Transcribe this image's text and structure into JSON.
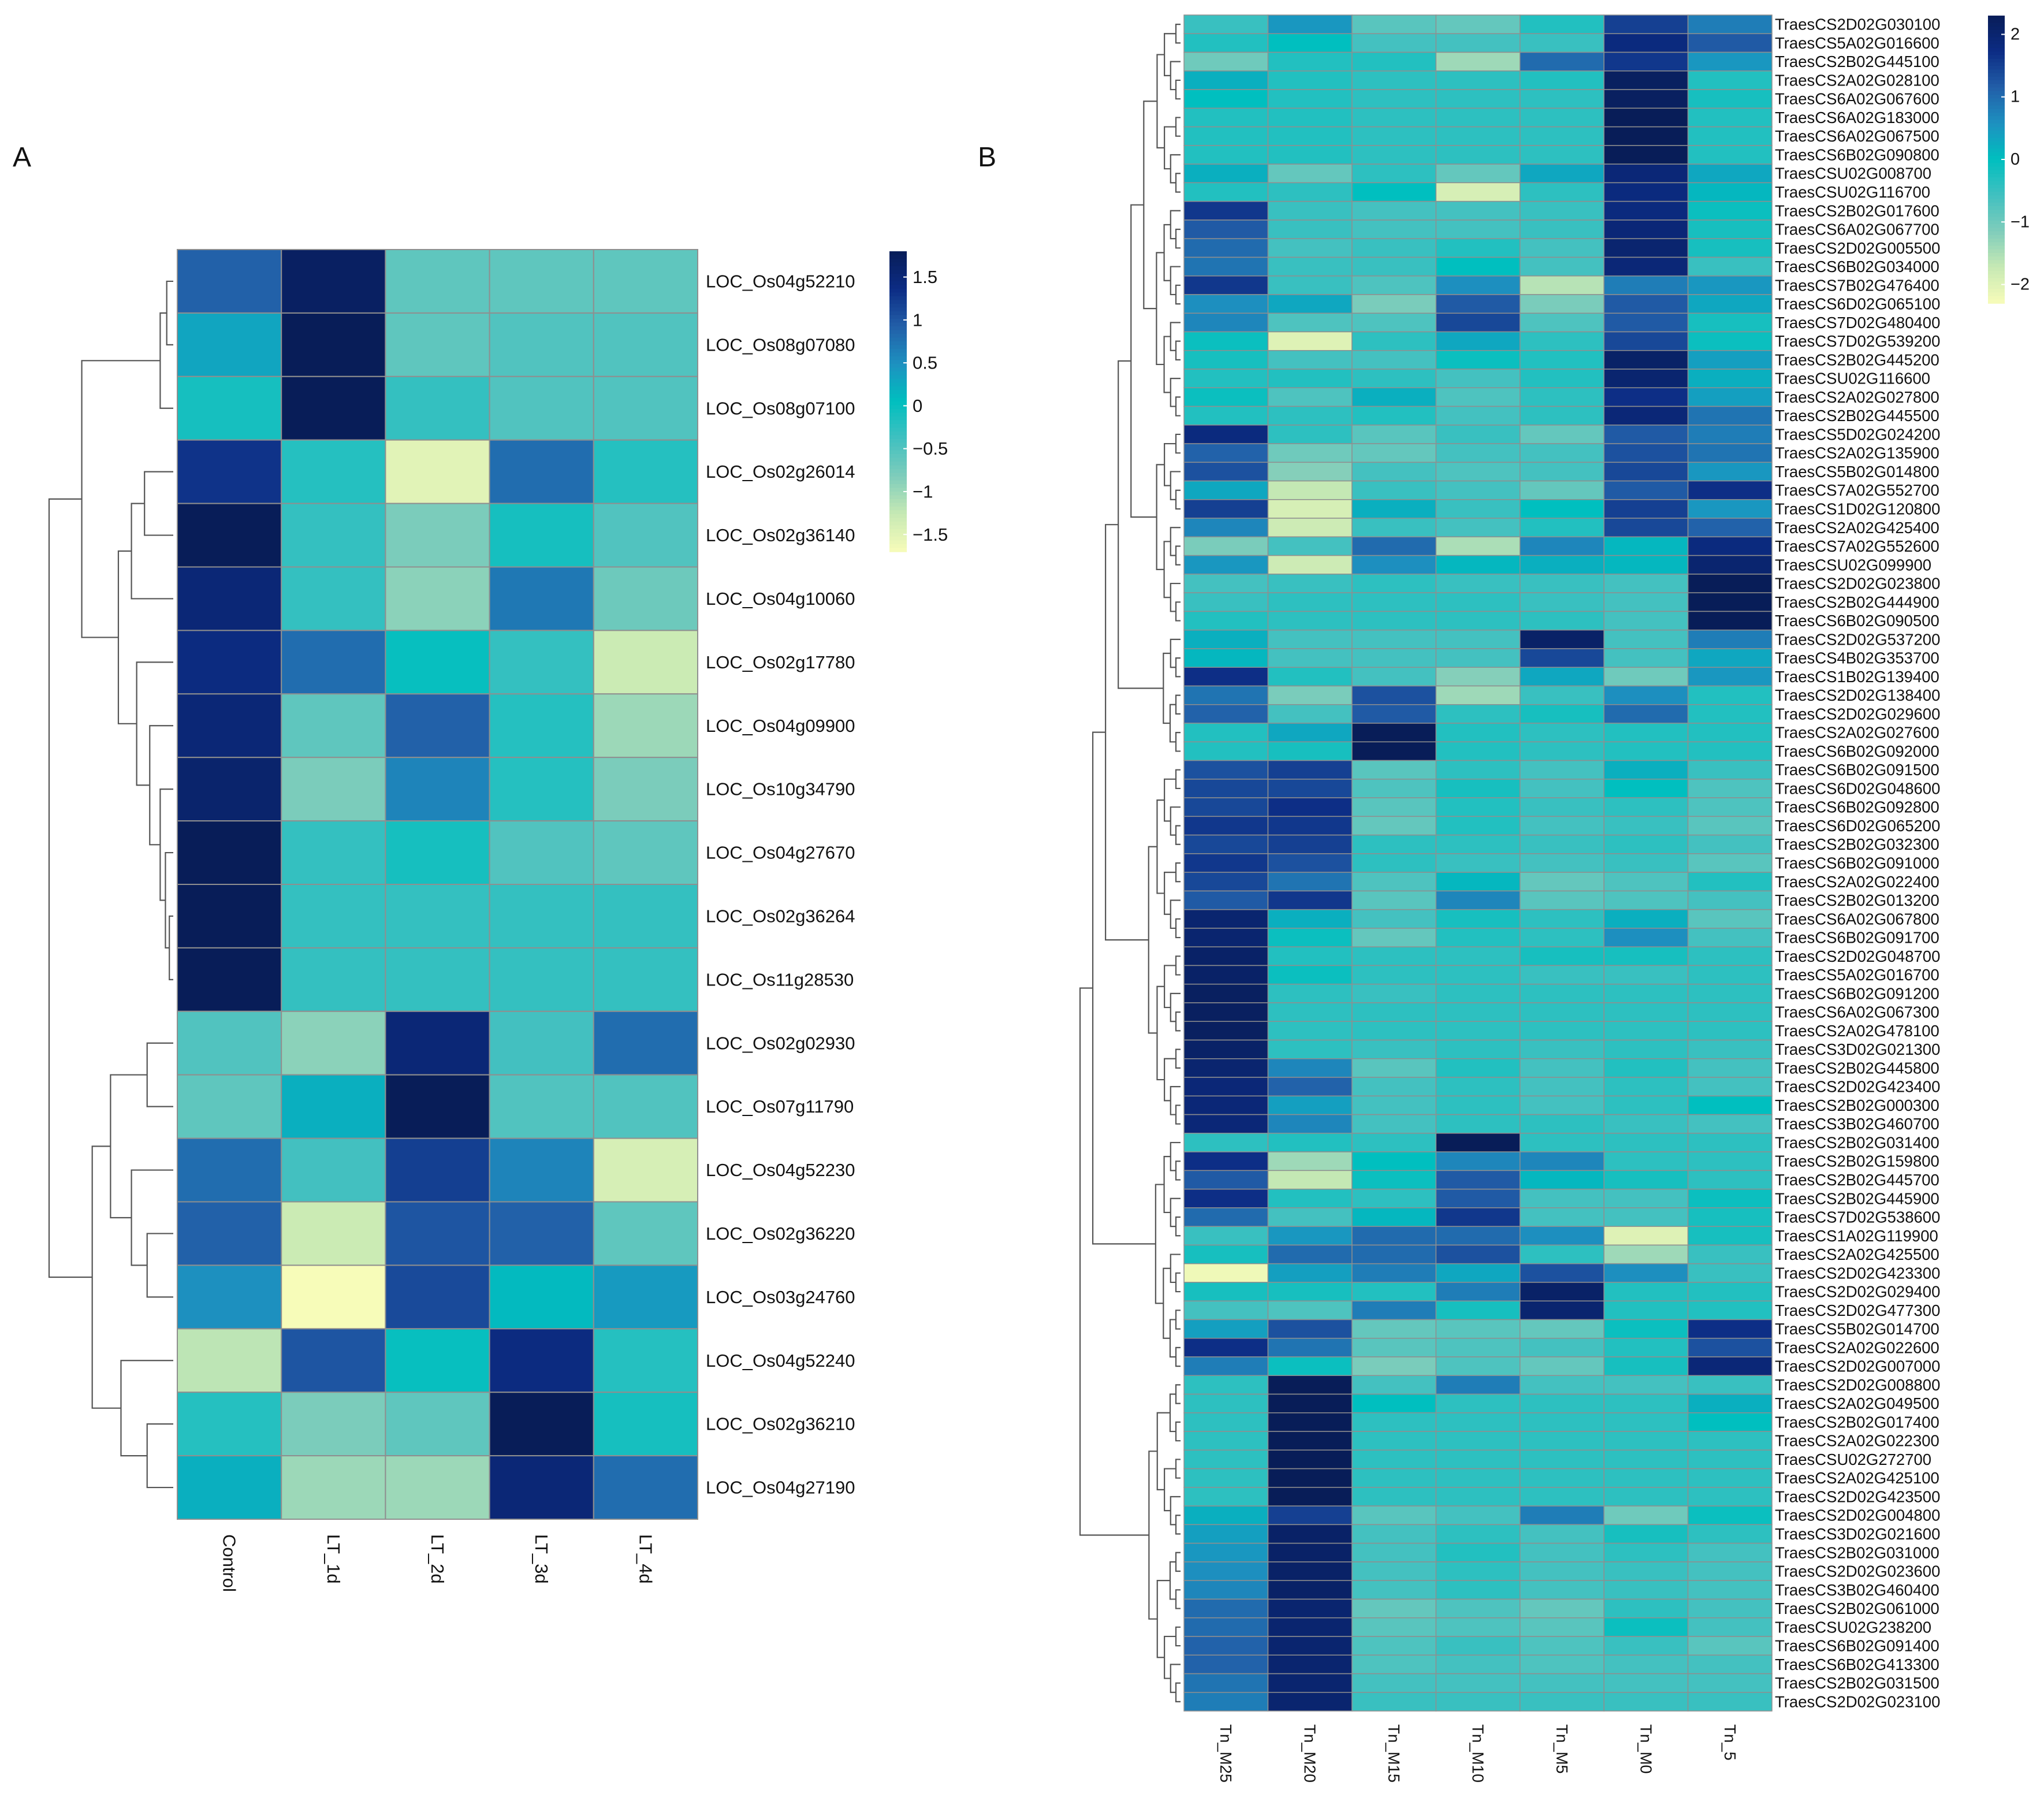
{
  "chart_data": [
    {
      "panel": "A",
      "type": "heatmap",
      "title": "",
      "columns": [
        "Control",
        "LT_1d",
        "LT_2d",
        "LT_3d",
        "LT_4d"
      ],
      "rows": [
        "LOC_Os04g52210",
        "LOC_Os08g07080",
        "LOC_Os08g07100",
        "LOC_Os02g26014",
        "LOC_Os02g36140",
        "LOC_Os04g10060",
        "LOC_Os02g17780",
        "LOC_Os04g09900",
        "LOC_Os10g34790",
        "LOC_Os04g27670",
        "LOC_Os02g36264",
        "LOC_Os11g28530",
        "LOC_Os02g02930",
        "LOC_Os07g11790",
        "LOC_Os04g52230",
        "LOC_Os02g36220",
        "LOC_Os03g24760",
        "LOC_Os04g52240",
        "LOC_Os02g36210",
        "LOC_Os04g27190"
      ],
      "values": [
        [
          0.9,
          1.7,
          -0.6,
          -0.6,
          -0.6
        ],
        [
          0.3,
          1.8,
          -0.6,
          -0.5,
          -0.5
        ],
        [
          -0.1,
          1.8,
          -0.3,
          -0.5,
          -0.5
        ],
        [
          1.3,
          -0.2,
          -1.5,
          0.8,
          -0.2
        ],
        [
          1.8,
          -0.3,
          -0.8,
          -0.1,
          -0.5
        ],
        [
          1.5,
          -0.3,
          -0.9,
          0.7,
          -0.7
        ],
        [
          1.4,
          0.8,
          0.0,
          -0.3,
          -1.3
        ],
        [
          1.5,
          -0.6,
          0.9,
          -0.2,
          -1.0
        ],
        [
          1.6,
          -0.8,
          0.6,
          -0.2,
          -0.8
        ],
        [
          1.8,
          -0.3,
          -0.1,
          -0.5,
          -0.6
        ],
        [
          1.8,
          -0.3,
          -0.3,
          -0.3,
          -0.3
        ],
        [
          1.8,
          -0.3,
          -0.3,
          -0.3,
          -0.3
        ],
        [
          -0.5,
          -0.9,
          1.5,
          -0.4,
          0.8
        ],
        [
          -0.6,
          0.2,
          1.8,
          -0.5,
          -0.5
        ],
        [
          0.8,
          -0.4,
          1.2,
          0.6,
          -1.4
        ],
        [
          0.9,
          -1.3,
          1.0,
          0.9,
          -0.6
        ],
        [
          0.5,
          -1.8,
          1.1,
          0.1,
          0.4
        ],
        [
          -1.2,
          1.0,
          0.0,
          1.4,
          -0.2
        ],
        [
          -0.2,
          -0.8,
          -0.6,
          1.8,
          -0.1
        ],
        [
          0.2,
          -1.0,
          -1.0,
          1.5,
          0.8
        ]
      ],
      "colorbar": {
        "min": -1.7,
        "max": 1.8,
        "ticks": [
          1.5,
          1,
          0.5,
          0,
          -0.5,
          -1,
          -1.5
        ],
        "tick_labels": [
          "1.5",
          "1",
          "0.5",
          "0",
          "−0.5",
          "−1",
          "−1.5"
        ]
      },
      "row_dendrogram": [
        [
          0,
          1,
          0.05
        ],
        [
          20,
          2,
          0.1
        ],
        [
          3,
          4,
          0.22
        ],
        [
          22,
          5,
          0.32
        ],
        [
          10,
          11,
          0.03
        ],
        [
          9,
          24,
          0.06
        ],
        [
          8,
          25,
          0.1
        ],
        [
          7,
          26,
          0.18
        ],
        [
          6,
          27,
          0.28
        ],
        [
          23,
          28,
          0.42
        ],
        [
          21,
          29,
          0.7
        ],
        [
          12,
          13,
          0.2
        ],
        [
          15,
          16,
          0.2
        ],
        [
          14,
          32,
          0.32
        ],
        [
          31,
          33,
          0.48
        ],
        [
          18,
          19,
          0.2
        ],
        [
          17,
          35,
          0.4
        ],
        [
          34,
          36,
          0.62
        ],
        [
          30,
          37,
          0.95
        ]
      ]
    },
    {
      "panel": "B",
      "type": "heatmap",
      "title": "",
      "columns": [
        "Tn_M25",
        "Tn_M20",
        "Tn_M15",
        "Tn_M10",
        "Tn_M5",
        "Tn_M0",
        "Tn_5"
      ],
      "rows": [
        "TraesCS2D02G030100",
        "TraesCS5A02G016600",
        "TraesCS2B02G445100",
        "TraesCS2A02G028100",
        "TraesCS6A02G067600",
        "TraesCS6A02G183000",
        "TraesCS6A02G067500",
        "TraesCS6B02G090800",
        "TraesCSU02G008700",
        "TraesCSU02G116700",
        "TraesCS2B02G017600",
        "TraesCS6A02G067700",
        "TraesCS2D02G005500",
        "TraesCS6B02G034000",
        "TraesCS7B02G476400",
        "TraesCS6D02G065100",
        "TraesCS7D02G480400",
        "TraesCS7D02G539200",
        "TraesCS2B02G445200",
        "TraesCSU02G116600",
        "TraesCS2A02G027800",
        "TraesCS2B02G445500",
        "TraesCS5D02G024200",
        "TraesCS2A02G135900",
        "TraesCS5B02G014800",
        "TraesCS7A02G552700",
        "TraesCS1D02G120800",
        "TraesCS2A02G425400",
        "TraesCS7A02G552600",
        "TraesCSU02G099900",
        "TraesCS2D02G023800",
        "TraesCS2B02G444900",
        "TraesCS6B02G090500",
        "TraesCS2D02G537200",
        "TraesCS4B02G353700",
        "TraesCS1B02G139400",
        "TraesCS2D02G138400",
        "TraesCS2D02G029600",
        "TraesCS2A02G027600",
        "TraesCS6B02G092000",
        "TraesCS6B02G091500",
        "TraesCS6D02G048600",
        "TraesCS6B02G092800",
        "TraesCS6D02G065200",
        "TraesCS2B02G032300",
        "TraesCS6B02G091000",
        "TraesCS2A02G022400",
        "TraesCS2B02G013200",
        "TraesCS6A02G067800",
        "TraesCS6B02G091700",
        "TraesCS2D02G048700",
        "TraesCS5A02G016700",
        "TraesCS6B02G091200",
        "TraesCS6A02G067300",
        "TraesCS2A02G478100",
        "TraesCS3D02G021300",
        "TraesCS2B02G445800",
        "TraesCS2D02G423400",
        "TraesCS2B02G000300",
        "TraesCS3B02G460700",
        "TraesCS2B02G031400",
        "TraesCS2B02G159800",
        "TraesCS2B02G445700",
        "TraesCS2B02G445900",
        "TraesCS7D02G538600",
        "TraesCS1A02G119900",
        "TraesCS2A02G425500",
        "TraesCS2D02G423300",
        "TraesCS2D02G029400",
        "TraesCS2D02G477300",
        "TraesCS5B02G014700",
        "TraesCS2A02G022600",
        "TraesCS2D02G007000",
        "TraesCS2D02G008800",
        "TraesCS2A02G049500",
        "TraesCS2B02G017400",
        "TraesCS2A02G022300",
        "TraesCSU02G272700",
        "TraesCS2A02G425100",
        "TraesCS2D02G423500",
        "TraesCS2D02G004800",
        "TraesCS3D02G021600",
        "TraesCS2B02G031000",
        "TraesCS2D02G023600",
        "TraesCS3B02G460400",
        "TraesCS2B02G061000",
        "TraesCSU02G238200",
        "TraesCS6B02G091400",
        "TraesCS6B02G413300",
        "TraesCS2B02G031500",
        "TraesCS2D02G023100"
      ],
      "values": [
        [
          -0.5,
          0.5,
          -0.8,
          -0.9,
          -0.3,
          1.5,
          0.8
        ],
        [
          -0.3,
          0.0,
          -0.6,
          -0.6,
          -0.5,
          1.8,
          1.2
        ],
        [
          -1.0,
          -0.3,
          -0.3,
          -1.4,
          1.0,
          1.6,
          0.5
        ],
        [
          0.2,
          -0.3,
          -0.4,
          -0.4,
          -0.3,
          2.2,
          -0.3
        ],
        [
          0.0,
          -0.3,
          -0.4,
          -0.4,
          -0.4,
          2.2,
          -0.2
        ],
        [
          -0.3,
          -0.3,
          -0.4,
          -0.4,
          -0.4,
          2.3,
          -0.3
        ],
        [
          -0.3,
          -0.3,
          -0.4,
          -0.4,
          -0.4,
          2.3,
          -0.3
        ],
        [
          -0.3,
          -0.3,
          -0.4,
          -0.4,
          -0.4,
          2.3,
          -0.3
        ],
        [
          0.2,
          -0.9,
          -0.4,
          -0.9,
          0.3,
          1.9,
          0.3
        ],
        [
          -0.3,
          -0.4,
          0.0,
          -1.9,
          -0.4,
          1.8,
          0.1
        ],
        [
          1.6,
          -0.5,
          -0.6,
          -0.6,
          -0.5,
          1.8,
          -0.1
        ],
        [
          1.2,
          -0.5,
          -0.6,
          -0.6,
          -0.5,
          1.9,
          -0.2
        ],
        [
          1.0,
          -0.6,
          -0.5,
          -0.3,
          -0.6,
          2.0,
          -0.2
        ],
        [
          0.9,
          -0.5,
          -0.5,
          0.0,
          -0.6,
          1.9,
          -0.5
        ],
        [
          1.6,
          -0.5,
          -0.7,
          0.6,
          -1.6,
          0.8,
          0.5
        ],
        [
          0.6,
          0.3,
          -1.1,
          1.2,
          -1.1,
          1.2,
          0.3
        ],
        [
          0.7,
          -0.7,
          -0.7,
          1.4,
          -0.7,
          1.2,
          -0.2
        ],
        [
          -0.1,
          -2.0,
          -0.4,
          0.3,
          -0.4,
          1.4,
          -0.1
        ],
        [
          -0.2,
          -0.6,
          -0.6,
          -0.1,
          -0.3,
          2.1,
          0.4
        ],
        [
          -0.3,
          -0.3,
          -0.4,
          -0.6,
          -0.3,
          2.0,
          0.2
        ],
        [
          -0.1,
          -0.7,
          0.2,
          -0.7,
          -0.4,
          1.7,
          0.4
        ],
        [
          -0.3,
          -0.4,
          -0.3,
          -0.6,
          -0.4,
          1.9,
          0.9
        ],
        [
          1.8,
          -0.4,
          -0.8,
          -0.5,
          -0.9,
          1.2,
          0.8
        ],
        [
          1.1,
          -1.0,
          -0.9,
          -0.6,
          -0.6,
          1.3,
          0.9
        ],
        [
          1.3,
          -1.2,
          -0.6,
          -0.7,
          -0.6,
          1.4,
          0.5
        ],
        [
          0.3,
          -1.7,
          -0.5,
          -0.6,
          -0.9,
          1.2,
          1.7
        ],
        [
          1.5,
          -1.9,
          0.2,
          -0.5,
          0.0,
          1.5,
          0.5
        ],
        [
          0.7,
          -1.8,
          -0.5,
          -0.6,
          -0.3,
          1.4,
          1.1
        ],
        [
          -1.1,
          -0.6,
          1.0,
          -1.5,
          0.7,
          0.1,
          1.8
        ],
        [
          0.5,
          -1.8,
          0.6,
          0.1,
          0.2,
          0.1,
          2.0
        ],
        [
          -0.6,
          -0.5,
          -0.4,
          -0.5,
          -0.5,
          -0.6,
          2.3
        ],
        [
          -0.5,
          -0.4,
          -0.4,
          -0.4,
          -0.5,
          -0.6,
          2.3
        ],
        [
          -0.3,
          -0.4,
          -0.4,
          -0.4,
          -0.4,
          -0.6,
          2.3
        ],
        [
          0.2,
          -0.6,
          -0.6,
          -0.6,
          2.1,
          -0.6,
          0.8
        ],
        [
          0.1,
          -0.6,
          -0.6,
          -0.6,
          1.4,
          -0.6,
          0.3
        ],
        [
          1.7,
          -0.3,
          -0.6,
          -1.2,
          0.3,
          -1.0,
          0.5
        ],
        [
          0.9,
          -1.1,
          1.3,
          -1.4,
          -0.5,
          0.6,
          -0.3
        ],
        [
          1.1,
          -0.6,
          1.2,
          -0.4,
          -0.2,
          1.0,
          -0.3
        ],
        [
          -0.3,
          0.3,
          2.3,
          -0.3,
          -0.4,
          -0.3,
          -0.3
        ],
        [
          -0.3,
          -0.2,
          2.3,
          -0.3,
          -0.4,
          -0.3,
          -0.3
        ],
        [
          1.3,
          1.5,
          -0.8,
          -0.4,
          -0.6,
          0.2,
          -0.5
        ],
        [
          1.4,
          1.4,
          -0.7,
          -0.2,
          -0.6,
          0.0,
          -0.7
        ],
        [
          1.4,
          1.7,
          -0.8,
          -0.3,
          -0.5,
          -0.4,
          -0.7
        ],
        [
          1.6,
          1.6,
          -0.9,
          -0.3,
          -0.6,
          -0.5,
          -0.8
        ],
        [
          1.4,
          1.5,
          -0.4,
          -0.4,
          -0.5,
          -0.4,
          -0.6
        ],
        [
          1.6,
          1.3,
          -0.4,
          -0.5,
          -0.6,
          -0.5,
          -0.8
        ],
        [
          1.4,
          0.9,
          -0.7,
          0.1,
          -0.9,
          -0.7,
          -0.3
        ],
        [
          1.2,
          1.6,
          -0.8,
          0.7,
          -0.8,
          -0.7,
          -0.6
        ],
        [
          2.0,
          0.2,
          -0.6,
          -0.2,
          -0.4,
          0.2,
          -0.8
        ],
        [
          2.0,
          -0.1,
          -0.9,
          -0.3,
          -0.4,
          0.6,
          -0.6
        ],
        [
          2.1,
          -0.3,
          -0.4,
          -0.4,
          -0.2,
          -0.2,
          -0.4
        ],
        [
          2.1,
          -0.1,
          -0.4,
          -0.4,
          -0.5,
          -0.5,
          -0.4
        ],
        [
          2.2,
          -0.4,
          -0.5,
          -0.4,
          -0.4,
          -0.4,
          -0.4
        ],
        [
          2.2,
          -0.4,
          -0.4,
          -0.4,
          -0.4,
          -0.4,
          -0.4
        ],
        [
          2.2,
          -0.4,
          -0.4,
          -0.4,
          -0.4,
          -0.4,
          -0.4
        ],
        [
          2.1,
          -0.4,
          -0.5,
          -0.4,
          -0.5,
          -0.4,
          -0.5
        ],
        [
          2.0,
          0.7,
          -0.8,
          -0.3,
          -0.6,
          -0.3,
          -0.6
        ],
        [
          1.9,
          1.1,
          -0.6,
          -0.4,
          -0.6,
          -0.4,
          -0.6
        ],
        [
          1.9,
          0.4,
          -0.6,
          -0.4,
          -0.6,
          -0.4,
          0.0
        ],
        [
          1.9,
          0.7,
          -0.6,
          -0.4,
          -0.4,
          -0.5,
          -0.6
        ],
        [
          -0.4,
          -0.3,
          -0.4,
          2.3,
          -0.4,
          -0.4,
          -0.4
        ],
        [
          1.7,
          -1.4,
          0.0,
          0.7,
          0.7,
          -0.4,
          -0.4
        ],
        [
          1.2,
          -1.7,
          -0.1,
          1.2,
          0.1,
          -0.2,
          -0.4
        ],
        [
          1.7,
          -0.3,
          -0.4,
          1.2,
          -0.6,
          -0.6,
          -0.1
        ],
        [
          1.0,
          -0.6,
          0.1,
          1.6,
          -0.6,
          -0.6,
          -0.2
        ],
        [
          -0.5,
          0.5,
          1.0,
          1.0,
          0.6,
          -2.0,
          -0.2
        ],
        [
          -0.2,
          1.0,
          1.0,
          1.3,
          -0.4,
          -1.4,
          -0.5
        ],
        [
          -2.2,
          0.4,
          0.8,
          0.3,
          1.3,
          0.6,
          -0.5
        ],
        [
          -0.2,
          -0.2,
          -0.3,
          0.8,
          2.1,
          -0.3,
          -0.3
        ],
        [
          -0.6,
          -0.7,
          0.8,
          -0.2,
          2.0,
          -0.3,
          -0.3
        ],
        [
          0.4,
          1.3,
          -0.9,
          -0.8,
          -0.9,
          -0.1,
          1.7
        ],
        [
          1.7,
          0.9,
          -0.8,
          -0.7,
          -0.6,
          -0.3,
          1.3
        ],
        [
          0.8,
          -0.1,
          -1.1,
          -0.7,
          -0.9,
          -0.2,
          1.9
        ],
        [
          -0.4,
          2.3,
          -0.6,
          0.8,
          -0.6,
          -0.6,
          -0.5
        ],
        [
          -0.4,
          2.3,
          0.0,
          -0.4,
          -0.4,
          -0.4,
          0.2
        ],
        [
          -0.4,
          2.3,
          -0.4,
          -0.4,
          -0.4,
          -0.4,
          0.0
        ],
        [
          -0.4,
          2.3,
          -0.4,
          -0.4,
          -0.4,
          -0.4,
          -0.4
        ],
        [
          -0.4,
          2.3,
          -0.4,
          -0.4,
          -0.4,
          -0.4,
          -0.4
        ],
        [
          -0.4,
          2.3,
          -0.4,
          -0.4,
          -0.4,
          -0.4,
          -0.4
        ],
        [
          -0.4,
          2.3,
          -0.4,
          -0.4,
          -0.4,
          -0.4,
          -0.4
        ],
        [
          0.2,
          1.5,
          -0.8,
          -0.6,
          0.8,
          -1.0,
          -0.1
        ],
        [
          0.4,
          2.1,
          -0.6,
          -0.4,
          -0.6,
          -0.2,
          -0.4
        ],
        [
          0.5,
          2.1,
          -0.6,
          -0.3,
          -0.6,
          -0.4,
          -0.6
        ],
        [
          0.6,
          2.1,
          -0.6,
          -0.4,
          -0.6,
          -0.5,
          -0.6
        ],
        [
          0.7,
          2.1,
          -0.6,
          -0.4,
          -0.6,
          -0.5,
          -0.6
        ],
        [
          1.0,
          2.0,
          -0.9,
          -0.7,
          -0.9,
          -0.4,
          -0.6
        ],
        [
          1.0,
          2.0,
          -0.8,
          -0.7,
          -0.8,
          -0.1,
          -0.6
        ],
        [
          1.1,
          2.0,
          -0.7,
          -0.5,
          -0.7,
          -0.5,
          -0.8
        ],
        [
          1.1,
          2.0,
          -0.7,
          -0.6,
          -0.7,
          -0.6,
          -0.6
        ],
        [
          0.9,
          2.0,
          -0.6,
          -0.6,
          -0.6,
          -0.6,
          -0.6
        ],
        [
          0.8,
          2.0,
          -0.5,
          -0.5,
          -0.5,
          -0.5,
          -0.5
        ]
      ],
      "colorbar": {
        "min": -2.3,
        "max": 2.3,
        "ticks": [
          2,
          1,
          0,
          -1,
          -2
        ],
        "tick_labels": [
          "2",
          "1",
          "0",
          "−1",
          "−2"
        ]
      }
    }
  ],
  "panels": {
    "a": {
      "label": "A"
    },
    "b": {
      "label": "B"
    }
  },
  "palette": {
    "stops": [
      "#f7fcb9",
      "#c7e9b4",
      "#7fcdbb",
      "#41c0c0",
      "#00bfbf",
      "#1d91c0",
      "#225ea8",
      "#0c2c84",
      "#081d58"
    ],
    "grid_line": "#8f8f8f",
    "dendro_line": "#555555"
  }
}
